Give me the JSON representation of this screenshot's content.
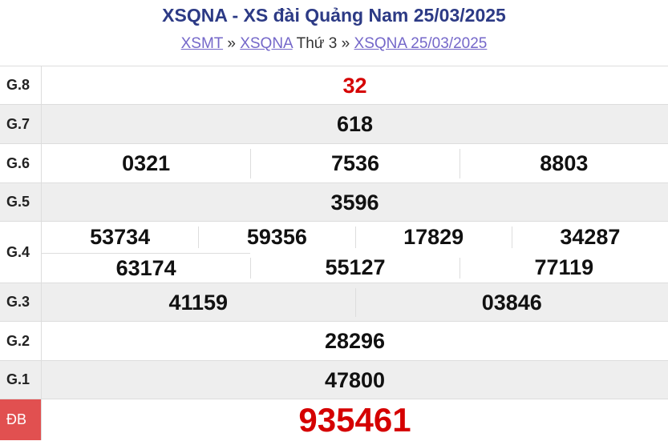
{
  "header": {
    "title": "XSQNA - XS đài Quảng Nam 25/03/2025",
    "breadcrumb": [
      "XSMT",
      "»",
      "XSQNA",
      "Thứ 3",
      "»",
      "XSQNA 25/03/2025"
    ]
  },
  "table": {
    "rows": [
      {
        "label": "G.8",
        "color": "#d50000",
        "lines": [
          [
            "32"
          ]
        ]
      },
      {
        "label": "G.7",
        "lines": [
          [
            "618"
          ]
        ]
      },
      {
        "label": "G.6",
        "lines": [
          [
            "0321",
            "7536",
            "8803"
          ]
        ]
      },
      {
        "label": "G.5",
        "lines": [
          [
            "3596"
          ]
        ]
      },
      {
        "label": "G.4",
        "lines": [
          [
            "53734",
            "59356",
            "17829",
            "34287"
          ],
          [
            "63174",
            "55127",
            "77119"
          ]
        ]
      },
      {
        "label": "G.3",
        "lines": [
          [
            "41159",
            "03846"
          ]
        ]
      },
      {
        "label": "G.2",
        "lines": [
          [
            "28296"
          ]
        ]
      },
      {
        "label": "G.1",
        "lines": [
          [
            "47800"
          ]
        ]
      },
      {
        "label": "ĐB",
        "color": "#d50000",
        "lines": [
          [
            "935461"
          ]
        ]
      }
    ]
  }
}
